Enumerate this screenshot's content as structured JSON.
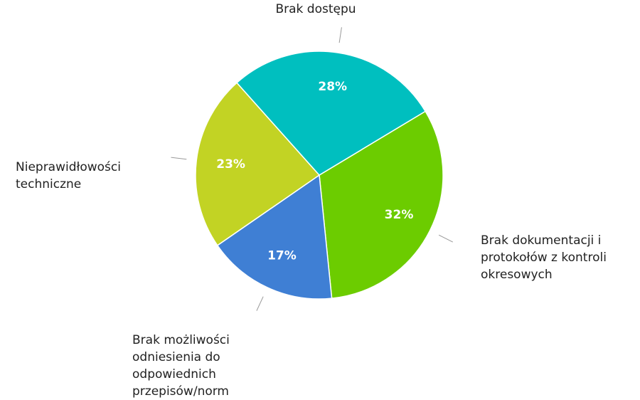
{
  "chart_data": {
    "type": "pie",
    "labels": [
      [
        "Brak dokumentacji i",
        "protokołów z kontroli",
        "okresowych"
      ],
      [
        "Brak możliwości",
        "odniesienia do",
        "odpowiednich",
        "przepisów/norm"
      ],
      [
        "Nieprawidłowości",
        "techniczne"
      ],
      [
        "Brak dostępu"
      ]
    ],
    "values": [
      32,
      17,
      23,
      28
    ],
    "value_labels": [
      "32%",
      "17%",
      "23%",
      "28%"
    ],
    "colors": [
      "#6ccc00",
      "#3f7fd4",
      "#c2d324",
      "#00bfbf"
    ]
  }
}
